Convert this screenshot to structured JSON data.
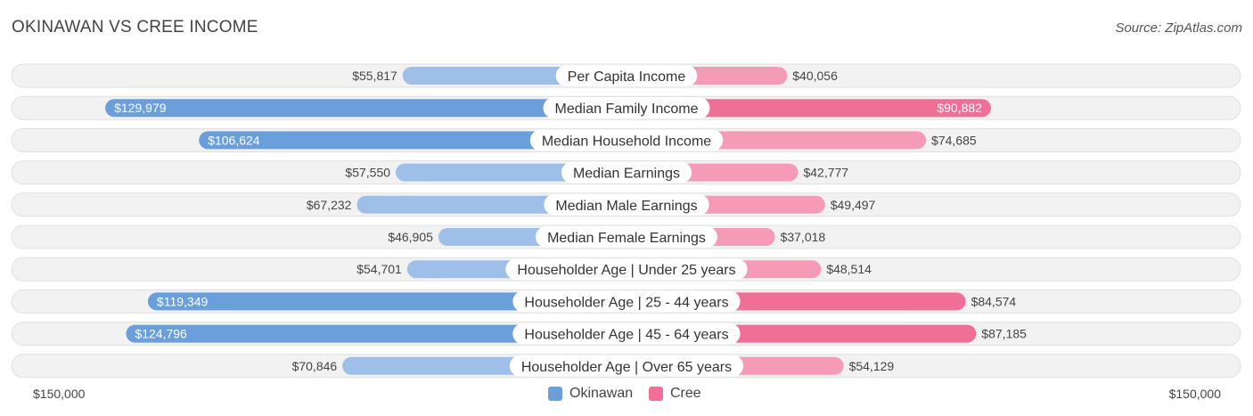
{
  "title": "OKINAWAN VS CREE INCOME",
  "source": "Source: ZipAtlas.com",
  "axis": {
    "left_label": "$150,000",
    "right_label": "$150,000"
  },
  "colors": {
    "okinawan_light": "#9dbfe8",
    "okinawan_dark": "#6a9fdc",
    "cree_light": "#f59bb7",
    "cree_dark": "#f06f97"
  },
  "chart_data": {
    "type": "bar",
    "orientation": "diverging-horizontal",
    "title": "OKINAWAN VS CREE INCOME",
    "xlim": [
      0,
      150000
    ],
    "categories": [
      "Per Capita Income",
      "Median Family Income",
      "Median Household Income",
      "Median Earnings",
      "Median Male Earnings",
      "Median Female Earnings",
      "Householder Age | Under 25 years",
      "Householder Age | 25 - 44 years",
      "Householder Age | 45 - 64 years",
      "Householder Age | Over 65 years"
    ],
    "series": [
      {
        "name": "Okinawan",
        "values": [
          55817,
          129979,
          106624,
          57550,
          67232,
          46905,
          54701,
          119349,
          124796,
          70846
        ],
        "labels": [
          "$55,817",
          "$129,979",
          "$106,624",
          "$57,550",
          "$67,232",
          "$46,905",
          "$54,701",
          "$119,349",
          "$124,796",
          "$70,846"
        ]
      },
      {
        "name": "Cree",
        "values": [
          40056,
          90882,
          74685,
          42777,
          49497,
          37018,
          48514,
          84574,
          87185,
          54129
        ],
        "labels": [
          "$40,056",
          "$90,882",
          "$74,685",
          "$42,777",
          "$49,497",
          "$37,018",
          "$48,514",
          "$84,574",
          "$87,185",
          "$54,129"
        ]
      }
    ],
    "legend": {
      "placement": "bottom-center",
      "items": [
        "Okinawan",
        "Cree"
      ]
    }
  }
}
